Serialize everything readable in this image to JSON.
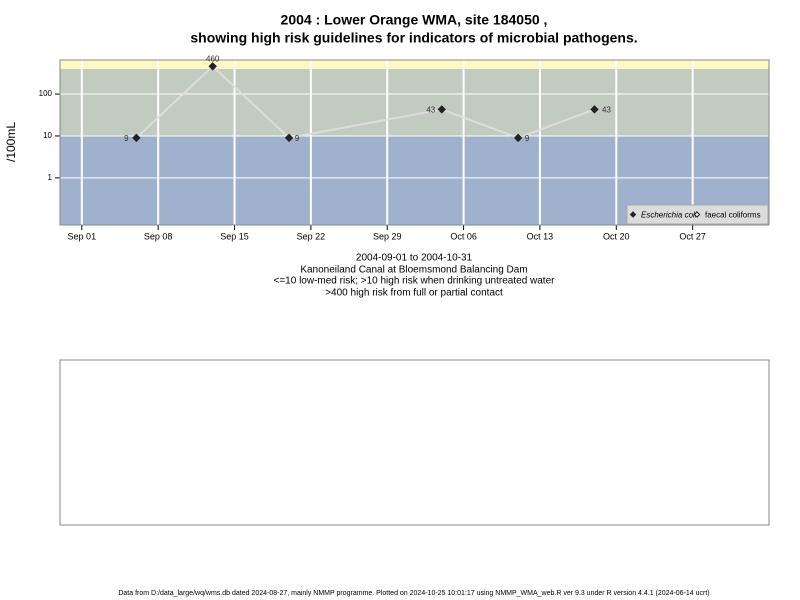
{
  "chart_data": {
    "type": "line",
    "title": [
      "2004 : Lower Orange WMA, site 184050 ,",
      "showing high risk guidelines for indicators of microbial pathogens."
    ],
    "y_label": "/100mL",
    "notes": [
      "2004-09-01 to 2004-10-31",
      "Kanoneiland Canal at Bloemsmond Balancing Dam",
      "<=10 low-med risk; >10 high risk when drinking untreated water",
      ">400 high risk from full or partial contact"
    ],
    "footer": "Data from D:/data_large/wq/wms.db dated 2024-08-27, mainly NMMP programme. Plotted on 2024-10-25 10:01:17 using NMMP_WMA_web.R ver 9.3 under R version 4.4.1 (2024-06-14 ucrt)",
    "x": [
      "2004-09-06",
      "2004-09-13",
      "2004-09-20",
      "2004-10-04",
      "2004-10-11",
      "2004-10-18"
    ],
    "series": [
      {
        "name": "Escherichia coli",
        "color": "#222222",
        "line_color": "#dddddd",
        "marker": "filled",
        "values": [
          9,
          460,
          9,
          43,
          9,
          43
        ]
      },
      {
        "name": "faecal coliforms",
        "color": "#222222",
        "marker": "open",
        "values": [
          null,
          null,
          null,
          null,
          null,
          null
        ]
      }
    ],
    "yscale": "log",
    "ylim": [
      0.075,
      650
    ],
    "yticks": [
      1,
      10,
      100
    ],
    "xlim": [
      "2004-08-30",
      "2004-11-03"
    ],
    "xticks": [
      {
        "value": "2004-09-01",
        "label": "Sep 01"
      },
      {
        "value": "2004-09-08",
        "label": "Sep 08"
      },
      {
        "value": "2004-09-15",
        "label": "Sep 15"
      },
      {
        "value": "2004-09-22",
        "label": "Sep 22"
      },
      {
        "value": "2004-09-29",
        "label": "Sep 29"
      },
      {
        "value": "2004-10-06",
        "label": "Oct 06"
      },
      {
        "value": "2004-10-13",
        "label": "Oct 13"
      },
      {
        "value": "2004-10-20",
        "label": "Oct 20"
      },
      {
        "value": "2004-10-27",
        "label": "Oct 27"
      }
    ],
    "thresholds": [
      10,
      400
    ],
    "band_colors": [
      "#9fb1cc",
      "#c2cbbf",
      "#fff8c4"
    ],
    "grid": true,
    "legend": "bottom-right"
  }
}
